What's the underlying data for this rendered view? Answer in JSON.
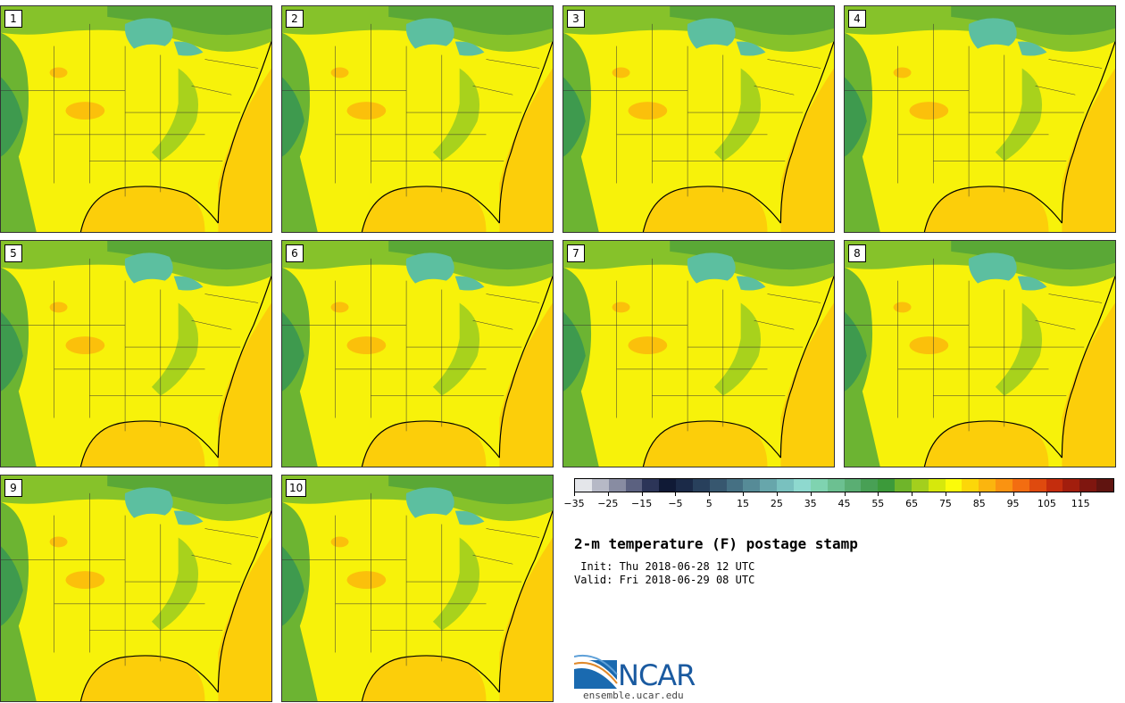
{
  "panels": [
    {
      "label": "1"
    },
    {
      "label": "2"
    },
    {
      "label": "3"
    },
    {
      "label": "4"
    },
    {
      "label": "5"
    },
    {
      "label": "6"
    },
    {
      "label": "7"
    },
    {
      "label": "8"
    },
    {
      "label": "9"
    },
    {
      "label": "10"
    }
  ],
  "colorbar": {
    "colors": [
      "#e4e6ea",
      "#b6b9c6",
      "#888ca2",
      "#5b6180",
      "#2c3558",
      "#101a36",
      "#1b2a48",
      "#28405c",
      "#37576f",
      "#457083",
      "#568b97",
      "#67a6ab",
      "#79c1bf",
      "#8ed9cf",
      "#7fd3b0",
      "#6cc091",
      "#5aae73",
      "#48a055",
      "#3c9a3a",
      "#6fb52a",
      "#a3cf1d",
      "#d6e80c",
      "#fbfb0a",
      "#fcd709",
      "#fbb50e",
      "#fa9311",
      "#f36d11",
      "#df4a0e",
      "#c42d0d",
      "#a21e0d",
      "#7f160f",
      "#601410"
    ],
    "tick_labels": [
      "−35",
      "−25",
      "−15",
      "−5",
      "5",
      "15",
      "25",
      "35",
      "45",
      "55",
      "65",
      "75",
      "85",
      "95",
      "105",
      "115"
    ]
  },
  "title": "2-m temperature (F) postage stamp",
  "init_line": " Init: Thu 2018-06-28 12 UTC",
  "valid_line": "Valid: Fri 2018-06-29 08 UTC",
  "logo": {
    "text": "NCAR",
    "site": "ensemble.ucar.edu"
  }
}
